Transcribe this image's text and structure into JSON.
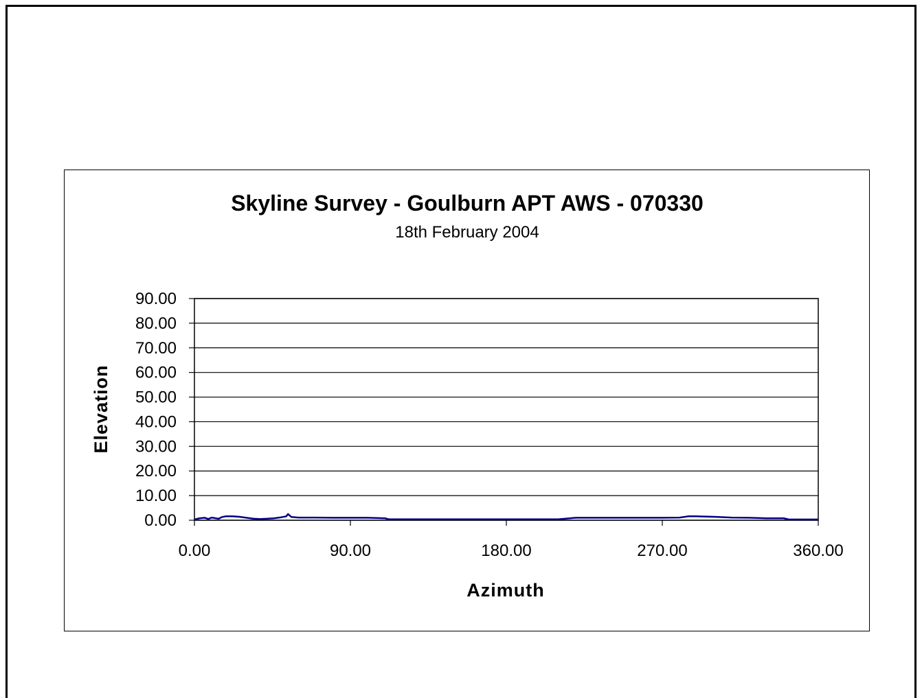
{
  "chart_data": {
    "type": "line",
    "title": "Skyline Survey - Goulburn APT AWS - 070330",
    "subtitle": "18th February 2004",
    "xlabel": "Azimuth",
    "ylabel": "Elevation",
    "xlim": [
      0,
      360
    ],
    "ylim": [
      0,
      90
    ],
    "xticks": [
      "0.00",
      "90.00",
      "180.00",
      "270.00",
      "360.00"
    ],
    "yticks": [
      "0.00",
      "10.00",
      "20.00",
      "30.00",
      "40.00",
      "50.00",
      "60.00",
      "70.00",
      "80.00",
      "90.00"
    ],
    "grid": "horizontal",
    "legend": "none",
    "series_color": "#000080",
    "series": [
      {
        "x": [
          0,
          3,
          6,
          8,
          10,
          14,
          16,
          18,
          22,
          26,
          30,
          34,
          38,
          42,
          46,
          50,
          53,
          54,
          56,
          60,
          70,
          80,
          90,
          100,
          110,
          112,
          120,
          130,
          140,
          150,
          160,
          170,
          180,
          190,
          200,
          210,
          220,
          230,
          240,
          250,
          260,
          270,
          280,
          285,
          290,
          300,
          310,
          320,
          330,
          340,
          343,
          350,
          360
        ],
        "y": [
          0.3,
          0.8,
          1.0,
          0.5,
          1.1,
          0.6,
          1.3,
          1.6,
          1.6,
          1.4,
          1.0,
          0.6,
          0.5,
          0.6,
          0.8,
          1.2,
          1.6,
          2.5,
          1.3,
          1.1,
          1.1,
          1.0,
          1.0,
          1.0,
          0.8,
          0.4,
          0.4,
          0.4,
          0.4,
          0.4,
          0.4,
          0.4,
          0.4,
          0.4,
          0.4,
          0.4,
          1.0,
          1.0,
          1.0,
          1.0,
          1.0,
          1.0,
          1.1,
          1.6,
          1.6,
          1.4,
          1.1,
          1.0,
          0.8,
          0.8,
          0.3,
          0.3,
          0.3
        ]
      }
    ]
  }
}
